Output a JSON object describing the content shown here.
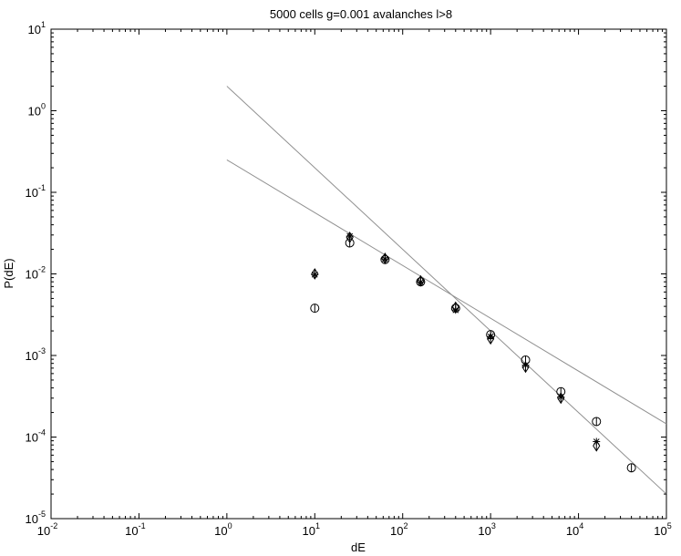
{
  "chart_data": {
    "type": "scatter",
    "title": "5000 cells g=0.001 avalanches l>8",
    "xlabel": "dE",
    "ylabel": "P(dE)",
    "xscale": "log",
    "yscale": "log",
    "xlim": [
      0.01,
      100000
    ],
    "ylim": [
      1e-05,
      10
    ],
    "grid": false,
    "legend": "none",
    "x_ticks": [
      {
        "base": "10",
        "exp": "-2",
        "value": 0.01
      },
      {
        "base": "10",
        "exp": "-1",
        "value": 0.1
      },
      {
        "base": "10",
        "exp": "0",
        "value": 1
      },
      {
        "base": "10",
        "exp": "1",
        "value": 10
      },
      {
        "base": "10",
        "exp": "2",
        "value": 100
      },
      {
        "base": "10",
        "exp": "3",
        "value": 1000
      },
      {
        "base": "10",
        "exp": "4",
        "value": 10000
      },
      {
        "base": "10",
        "exp": "5",
        "value": 100000
      }
    ],
    "y_ticks": [
      {
        "base": "10",
        "exp": "-5",
        "value": 1e-05
      },
      {
        "base": "10",
        "exp": "-4",
        "value": 0.0001
      },
      {
        "base": "10",
        "exp": "-3",
        "value": 0.001
      },
      {
        "base": "10",
        "exp": "-2",
        "value": 0.01
      },
      {
        "base": "10",
        "exp": "-1",
        "value": 0.1
      },
      {
        "base": "10",
        "exp": "0",
        "value": 1
      },
      {
        "base": "10",
        "exp": "1",
        "value": 10
      }
    ],
    "series": [
      {
        "marker": "circle",
        "points": [
          {
            "x": 10,
            "y": 0.0038
          },
          {
            "x": 25,
            "y": 0.024
          },
          {
            "x": 63,
            "y": 0.015
          },
          {
            "x": 160,
            "y": 0.008
          },
          {
            "x": 400,
            "y": 0.0038
          },
          {
            "x": 1000,
            "y": 0.0018
          },
          {
            "x": 2500,
            "y": 0.00088
          },
          {
            "x": 6300,
            "y": 0.00036
          },
          {
            "x": 16000,
            "y": 0.000155
          },
          {
            "x": 40000,
            "y": 4.2e-05
          }
        ]
      },
      {
        "marker": "diamond",
        "points": [
          {
            "x": 10,
            "y": 0.01
          },
          {
            "x": 25,
            "y": 0.028
          },
          {
            "x": 63,
            "y": 0.0155
          },
          {
            "x": 160,
            "y": 0.0082
          },
          {
            "x": 400,
            "y": 0.0039
          },
          {
            "x": 1000,
            "y": 0.0016
          },
          {
            "x": 2500,
            "y": 0.00072
          },
          {
            "x": 6300,
            "y": 0.0003
          },
          {
            "x": 16000,
            "y": 7.8e-05
          }
        ]
      },
      {
        "marker": "star",
        "points": [
          {
            "x": 10,
            "y": 0.0098
          },
          {
            "x": 25,
            "y": 0.029
          },
          {
            "x": 63,
            "y": 0.0152
          },
          {
            "x": 160,
            "y": 0.0079
          },
          {
            "x": 400,
            "y": 0.0036
          },
          {
            "x": 1000,
            "y": 0.0017
          },
          {
            "x": 2500,
            "y": 0.00076
          },
          {
            "x": 6300,
            "y": 0.00031
          },
          {
            "x": 16000,
            "y": 8.8e-05
          }
        ]
      }
    ],
    "fit_lines": [
      {
        "from": {
          "x": 1,
          "y": 2.0
        },
        "to": {
          "x": 100000,
          "y": 2e-05
        },
        "color": "#909090"
      },
      {
        "from": {
          "x": 1,
          "y": 0.25
        },
        "to": {
          "x": 100000,
          "y": 0.000145
        },
        "color": "#909090"
      }
    ]
  }
}
